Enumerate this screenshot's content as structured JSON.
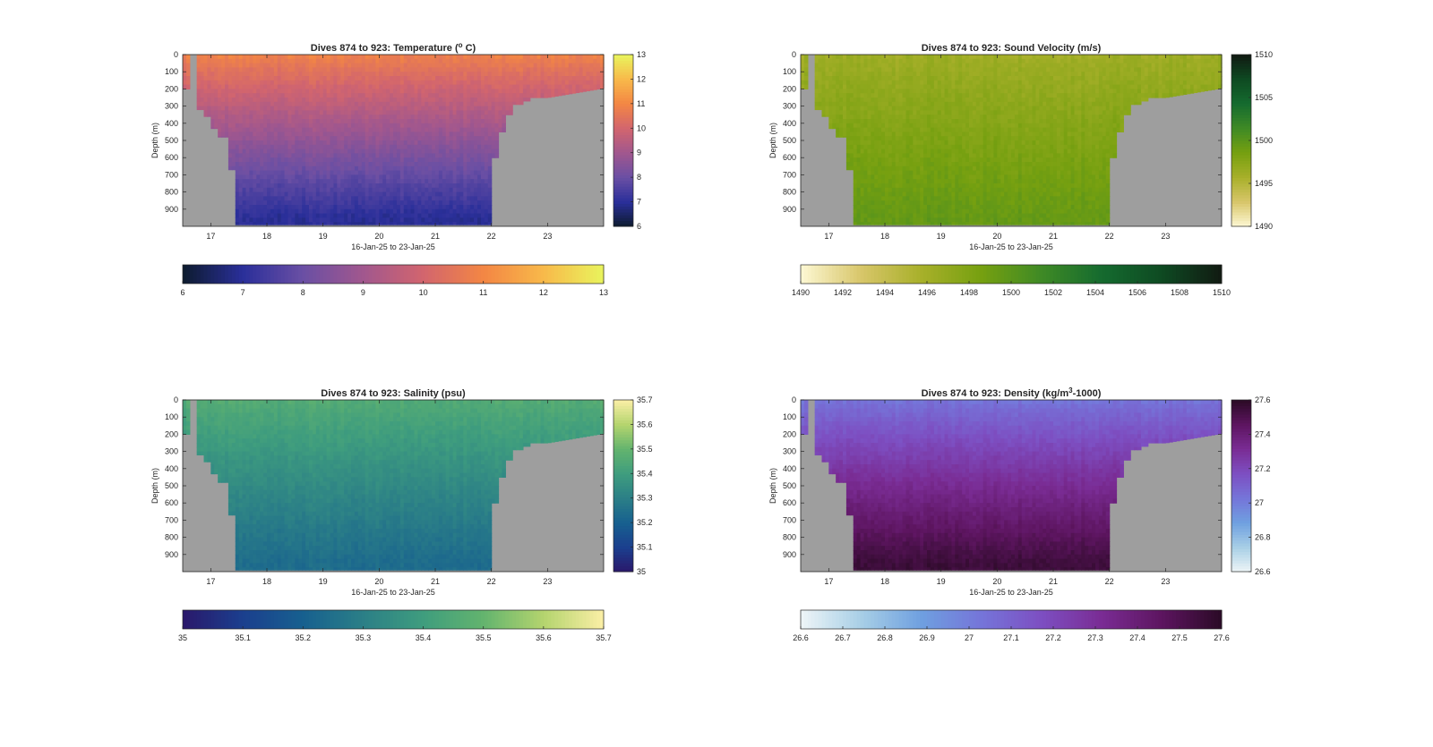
{
  "chart_data": [
    {
      "type": "heatmap",
      "title": "Dives 874 to 923: Temperature (",
      "title_sup": "o",
      "title_tail": " C)",
      "xlabel": "16-Jan-25 to 23-Jan-25",
      "ylabel": "Depth (m)",
      "xticks": [
        "17",
        "18",
        "19",
        "20",
        "21",
        "22",
        "23"
      ],
      "xlim": [
        16.5,
        24.0
      ],
      "yticks": [
        "0",
        "100",
        "200",
        "300",
        "400",
        "500",
        "600",
        "700",
        "800",
        "900"
      ],
      "ylim": [
        0,
        1000
      ],
      "clim": [
        6,
        13
      ],
      "colorbar_ticks": [
        "6",
        "7",
        "8",
        "9",
        "10",
        "11",
        "12",
        "13"
      ],
      "bottom_colorbar_ticks": [
        "6",
        "7",
        "8",
        "9",
        "10",
        "11",
        "12",
        "13"
      ],
      "colormap": [
        "#0d1b2e",
        "#2a2f9a",
        "#6a4fa4",
        "#a1578e",
        "#d2656e",
        "#f38644",
        "#f8b94a",
        "#e9f45d"
      ],
      "surface_value": 10.9,
      "deep_value": 7.0,
      "colors": {
        "land": "#9e9e9e"
      }
    },
    {
      "type": "heatmap",
      "title": "Dives 874 to 923: Sound Velocity (m/s)",
      "xlabel": "16-Jan-25 to 23-Jan-25",
      "ylabel": "Depth (m)",
      "xticks": [
        "17",
        "18",
        "19",
        "20",
        "21",
        "22",
        "23"
      ],
      "xlim": [
        16.5,
        24.0
      ],
      "yticks": [
        "0",
        "100",
        "200",
        "300",
        "400",
        "500",
        "600",
        "700",
        "800",
        "900"
      ],
      "ylim": [
        0,
        1000
      ],
      "clim": [
        1490,
        1510
      ],
      "colorbar_ticks": [
        "1490",
        "1495",
        "1500",
        "1505",
        "1510"
      ],
      "bottom_colorbar_ticks": [
        "1490",
        "1492",
        "1494",
        "1496",
        "1498",
        "1500",
        "1502",
        "1504",
        "1506",
        "1508",
        "1510"
      ],
      "colormap": [
        "#fdf8d4",
        "#d8c66a",
        "#a8b02a",
        "#76a010",
        "#3f8a25",
        "#156b2f",
        "#0e4a22",
        "#111a12"
      ],
      "surface_value": 1496.2,
      "deep_value": 1499.5,
      "colors": {
        "land": "#9e9e9e"
      }
    },
    {
      "type": "heatmap",
      "title": "Dives 874 to 923: Salinity (psu)",
      "xlabel": "16-Jan-25 to 23-Jan-25",
      "ylabel": "Depth (m)",
      "xticks": [
        "17",
        "18",
        "19",
        "20",
        "21",
        "22",
        "23"
      ],
      "xlim": [
        16.5,
        24.0
      ],
      "yticks": [
        "0",
        "100",
        "200",
        "300",
        "400",
        "500",
        "600",
        "700",
        "800",
        "900"
      ],
      "ylim": [
        0,
        1000
      ],
      "clim": [
        35,
        35.7
      ],
      "colorbar_ticks": [
        "35",
        "35.1",
        "35.2",
        "35.3",
        "35.4",
        "35.5",
        "35.6",
        "35.7"
      ],
      "bottom_colorbar_ticks": [
        "35",
        "35.1",
        "35.2",
        "35.3",
        "35.4",
        "35.5",
        "35.6",
        "35.7"
      ],
      "colormap": [
        "#2a186b",
        "#1b3f8e",
        "#17608f",
        "#2b7f87",
        "#3f9d7e",
        "#63b46e",
        "#b4d46e",
        "#fbefa6"
      ],
      "surface_value": 35.46,
      "deep_value": 35.24,
      "colors": {
        "land": "#9e9e9e"
      }
    },
    {
      "type": "heatmap",
      "title": "Dives 874 to 923: Density (kg/m",
      "title_sup": "3",
      "title_tail": "-1000)",
      "xlabel": "16-Jan-25 to 23-Jan-25",
      "ylabel": "Depth (m)",
      "xticks": [
        "17",
        "18",
        "19",
        "20",
        "21",
        "22",
        "23"
      ],
      "xlim": [
        16.5,
        24.0
      ],
      "yticks": [
        "0",
        "100",
        "200",
        "300",
        "400",
        "500",
        "600",
        "700",
        "800",
        "900"
      ],
      "ylim": [
        0,
        1000
      ],
      "clim": [
        26.6,
        27.6
      ],
      "colorbar_ticks": [
        "26.6",
        "26.8",
        "27",
        "27.2",
        "27.4",
        "27.6"
      ],
      "bottom_colorbar_ticks": [
        "26.6",
        "26.7",
        "26.8",
        "26.9",
        "27",
        "27.1",
        "27.2",
        "27.3",
        "27.4",
        "27.5",
        "27.6"
      ],
      "colormap": [
        "#eef5f7",
        "#a8cfe6",
        "#6fa0e0",
        "#7575d9",
        "#7d4fc2",
        "#7a2c94",
        "#5d1560",
        "#2b0a26"
      ],
      "surface_value": 27.03,
      "deep_value": 27.55,
      "colors": {
        "land": "#9e9e9e"
      }
    }
  ]
}
